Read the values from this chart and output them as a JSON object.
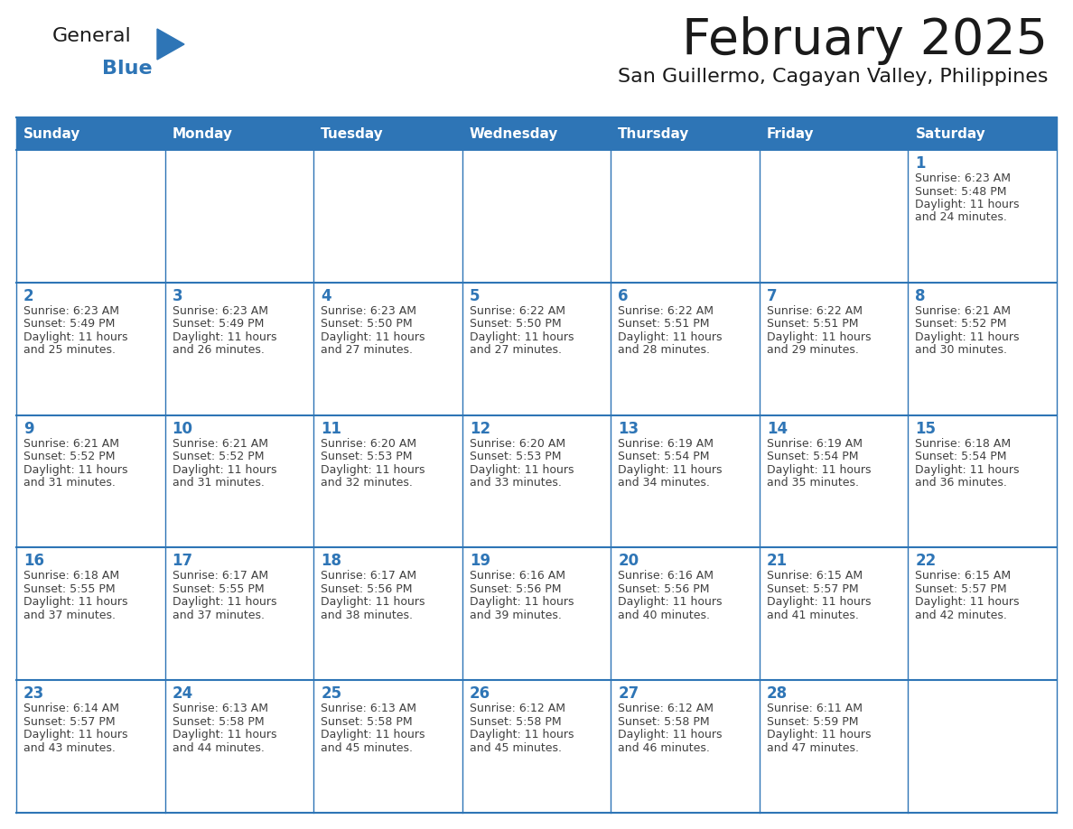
{
  "title": "February 2025",
  "subtitle": "San Guillermo, Cagayan Valley, Philippines",
  "days_of_week": [
    "Sunday",
    "Monday",
    "Tuesday",
    "Wednesday",
    "Thursday",
    "Friday",
    "Saturday"
  ],
  "header_bg": "#2E75B6",
  "header_text": "#FFFFFF",
  "cell_bg": "#FFFFFF",
  "border_color": "#2E75B6",
  "day_num_color": "#2E75B6",
  "text_color": "#404040",
  "title_color": "#1a1a1a",
  "logo_general_color": "#1a1a1a",
  "logo_blue_color": "#2E75B6",
  "logo_triangle_color": "#2E75B6",
  "grid_line_color": "#2E75B6",
  "calendar_data": [
    [
      null,
      null,
      null,
      null,
      null,
      null,
      {
        "day": 1,
        "sunrise": "6:23 AM",
        "sunset": "5:48 PM",
        "daylight": "11 hours and 24 minutes."
      }
    ],
    [
      {
        "day": 2,
        "sunrise": "6:23 AM",
        "sunset": "5:49 PM",
        "daylight": "11 hours and 25 minutes."
      },
      {
        "day": 3,
        "sunrise": "6:23 AM",
        "sunset": "5:49 PM",
        "daylight": "11 hours and 26 minutes."
      },
      {
        "day": 4,
        "sunrise": "6:23 AM",
        "sunset": "5:50 PM",
        "daylight": "11 hours and 27 minutes."
      },
      {
        "day": 5,
        "sunrise": "6:22 AM",
        "sunset": "5:50 PM",
        "daylight": "11 hours and 27 minutes."
      },
      {
        "day": 6,
        "sunrise": "6:22 AM",
        "sunset": "5:51 PM",
        "daylight": "11 hours and 28 minutes."
      },
      {
        "day": 7,
        "sunrise": "6:22 AM",
        "sunset": "5:51 PM",
        "daylight": "11 hours and 29 minutes."
      },
      {
        "day": 8,
        "sunrise": "6:21 AM",
        "sunset": "5:52 PM",
        "daylight": "11 hours and 30 minutes."
      }
    ],
    [
      {
        "day": 9,
        "sunrise": "6:21 AM",
        "sunset": "5:52 PM",
        "daylight": "11 hours and 31 minutes."
      },
      {
        "day": 10,
        "sunrise": "6:21 AM",
        "sunset": "5:52 PM",
        "daylight": "11 hours and 31 minutes."
      },
      {
        "day": 11,
        "sunrise": "6:20 AM",
        "sunset": "5:53 PM",
        "daylight": "11 hours and 32 minutes."
      },
      {
        "day": 12,
        "sunrise": "6:20 AM",
        "sunset": "5:53 PM",
        "daylight": "11 hours and 33 minutes."
      },
      {
        "day": 13,
        "sunrise": "6:19 AM",
        "sunset": "5:54 PM",
        "daylight": "11 hours and 34 minutes."
      },
      {
        "day": 14,
        "sunrise": "6:19 AM",
        "sunset": "5:54 PM",
        "daylight": "11 hours and 35 minutes."
      },
      {
        "day": 15,
        "sunrise": "6:18 AM",
        "sunset": "5:54 PM",
        "daylight": "11 hours and 36 minutes."
      }
    ],
    [
      {
        "day": 16,
        "sunrise": "6:18 AM",
        "sunset": "5:55 PM",
        "daylight": "11 hours and 37 minutes."
      },
      {
        "day": 17,
        "sunrise": "6:17 AM",
        "sunset": "5:55 PM",
        "daylight": "11 hours and 37 minutes."
      },
      {
        "day": 18,
        "sunrise": "6:17 AM",
        "sunset": "5:56 PM",
        "daylight": "11 hours and 38 minutes."
      },
      {
        "day": 19,
        "sunrise": "6:16 AM",
        "sunset": "5:56 PM",
        "daylight": "11 hours and 39 minutes."
      },
      {
        "day": 20,
        "sunrise": "6:16 AM",
        "sunset": "5:56 PM",
        "daylight": "11 hours and 40 minutes."
      },
      {
        "day": 21,
        "sunrise": "6:15 AM",
        "sunset": "5:57 PM",
        "daylight": "11 hours and 41 minutes."
      },
      {
        "day": 22,
        "sunrise": "6:15 AM",
        "sunset": "5:57 PM",
        "daylight": "11 hours and 42 minutes."
      }
    ],
    [
      {
        "day": 23,
        "sunrise": "6:14 AM",
        "sunset": "5:57 PM",
        "daylight": "11 hours and 43 minutes."
      },
      {
        "day": 24,
        "sunrise": "6:13 AM",
        "sunset": "5:58 PM",
        "daylight": "11 hours and 44 minutes."
      },
      {
        "day": 25,
        "sunrise": "6:13 AM",
        "sunset": "5:58 PM",
        "daylight": "11 hours and 45 minutes."
      },
      {
        "day": 26,
        "sunrise": "6:12 AM",
        "sunset": "5:58 PM",
        "daylight": "11 hours and 45 minutes."
      },
      {
        "day": 27,
        "sunrise": "6:12 AM",
        "sunset": "5:58 PM",
        "daylight": "11 hours and 46 minutes."
      },
      {
        "day": 28,
        "sunrise": "6:11 AM",
        "sunset": "5:59 PM",
        "daylight": "11 hours and 47 minutes."
      },
      null
    ]
  ]
}
